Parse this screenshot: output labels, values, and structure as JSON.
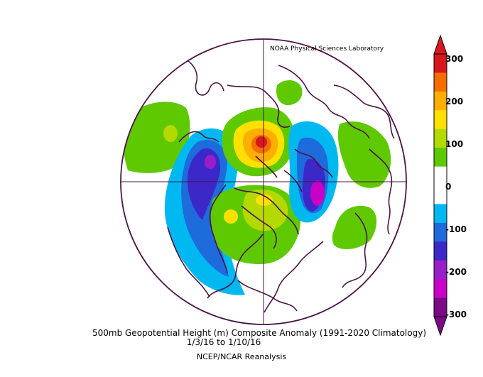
{
  "credit": "NOAA Physical Sciences Laboratory",
  "caption": {
    "title": "500mb Geopotential Height (m) Composite Anomaly (1991-2020 Climatology)",
    "dates": "1/3/16   to 1/10/16",
    "source": "NCEP/NCAR Reanalysis"
  },
  "colorbar": {
    "labels": [
      "300",
      "200",
      "100",
      "0",
      "-100",
      "-200",
      "-300"
    ],
    "colors": [
      "#d7191c",
      "#f46d00",
      "#fdae00",
      "#ffe000",
      "#b3d900",
      "#5ec900",
      "#ffffff",
      "#ffffff",
      "#00b8f0",
      "#1e6bdc",
      "#3c28c8",
      "#9a1ec8",
      "#c800c8",
      "#7a0a86"
    ]
  },
  "map": {
    "projection": "north polar stereographic",
    "coastline_color": "#4b1446"
  }
}
